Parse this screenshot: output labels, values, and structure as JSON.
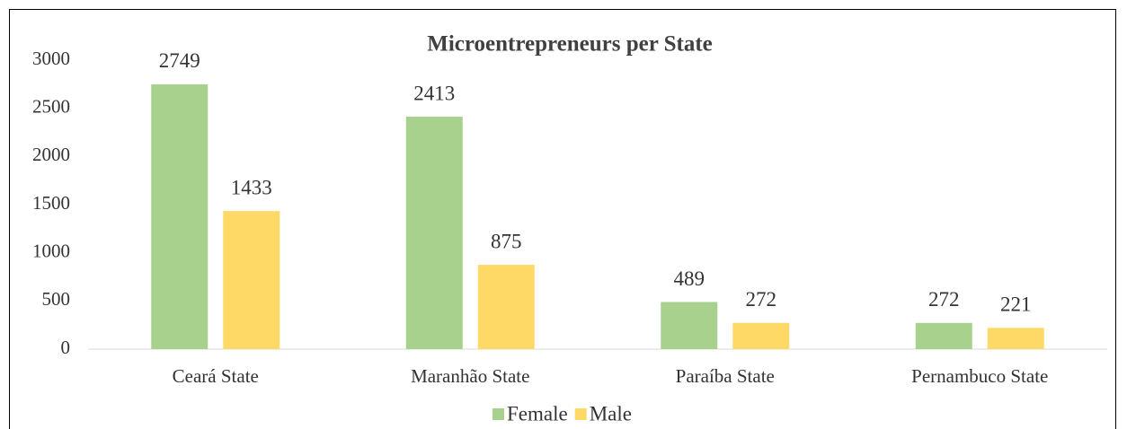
{
  "chart_data": {
    "type": "bar",
    "title": "Microentrepreneurs per State",
    "categories": [
      "Ceará State",
      "Maranhão State",
      "Paraíba State",
      "Pernambuco State"
    ],
    "series": [
      {
        "name": "Female",
        "color": "#a9d18e",
        "values": [
          2749,
          2413,
          489,
          272
        ]
      },
      {
        "name": "Male",
        "color": "#ffd966",
        "values": [
          1433,
          875,
          272,
          221
        ]
      }
    ],
    "ylim": [
      0,
      3000
    ],
    "yticks": [
      0,
      500,
      1000,
      1500,
      2000,
      2500,
      3000
    ],
    "grid": false,
    "legend": "bottom"
  }
}
